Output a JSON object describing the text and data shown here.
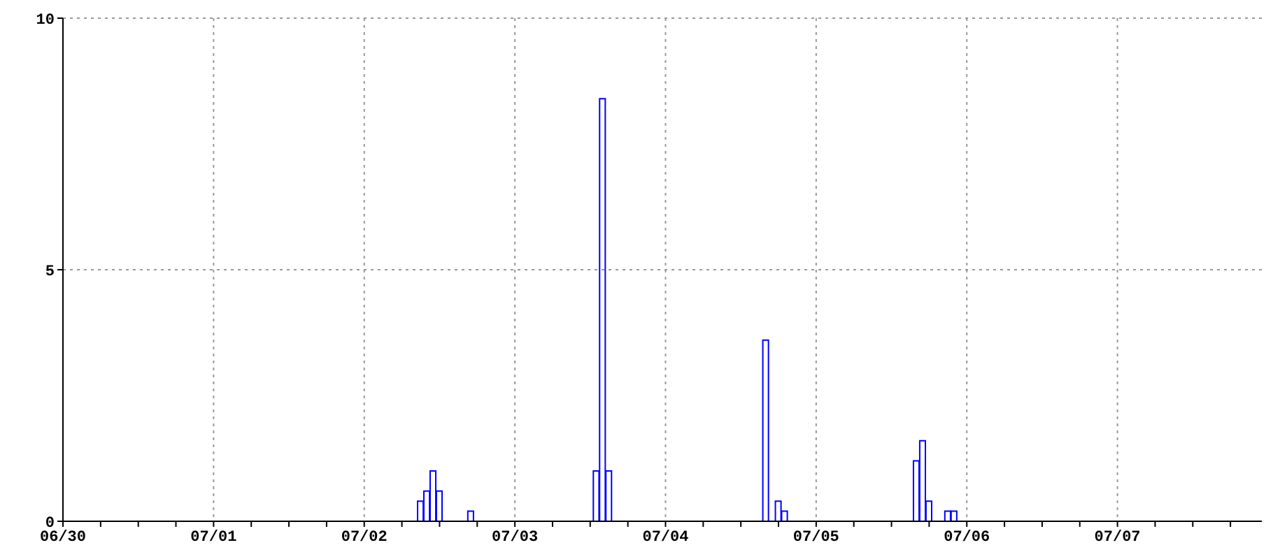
{
  "chart_data": {
    "type": "bar",
    "x": [
      "--07-02T09:00",
      "--07-02T10:00",
      "--07-02T11:00",
      "--07-02T12:00",
      "--07-02T17:00",
      "--07-03T13:00",
      "--07-03T14:00",
      "--07-03T15:00",
      "--07-04T16:00",
      "--07-04T18:00",
      "--07-04T19:00",
      "--07-05T16:00",
      "--07-05T17:00",
      "--07-05T18:00",
      "--07-05T21:00",
      "--07-05T22:00"
    ],
    "values": [
      0.4,
      0.6,
      1.0,
      0.6,
      0.2,
      1.0,
      8.4,
      1.0,
      3.6,
      0.4,
      0.2,
      1.2,
      1.6,
      0.4,
      0.2,
      0.2
    ],
    "color": "#0000ff",
    "xlim": [
      "--06-30T00:00",
      "--07-07T23:00"
    ],
    "xticks": [
      {
        "value": "--06-30",
        "label": "06/30"
      },
      {
        "value": "--06-30T06:00",
        "label": null
      },
      {
        "value": "--06-30T12:00",
        "label": null
      },
      {
        "value": "--06-30T18:00",
        "label": null
      },
      {
        "value": "--07-01",
        "label": "07/01"
      },
      {
        "value": "--07-01T06:00",
        "label": null
      },
      {
        "value": "--07-01T12:00",
        "label": null
      },
      {
        "value": "--07-01T18:00",
        "label": null
      },
      {
        "value": "--07-02",
        "label": "07/02"
      },
      {
        "value": "--07-02T06:00",
        "label": null
      },
      {
        "value": "--07-02T12:00",
        "label": null
      },
      {
        "value": "--07-02T18:00",
        "label": null
      },
      {
        "value": "--07-03",
        "label": "07/03"
      },
      {
        "value": "--07-03T06:00",
        "label": null
      },
      {
        "value": "--07-03T12:00",
        "label": null
      },
      {
        "value": "--07-03T18:00",
        "label": null
      },
      {
        "value": "--07-04",
        "label": "07/04"
      },
      {
        "value": "--07-04T06:00",
        "label": null
      },
      {
        "value": "--07-04T12:00",
        "label": null
      },
      {
        "value": "--07-04T18:00",
        "label": null
      },
      {
        "value": "--07-05",
        "label": "07/05"
      },
      {
        "value": "--07-05T06:00",
        "label": null
      },
      {
        "value": "--07-05T12:00",
        "label": null
      },
      {
        "value": "--07-05T18:00",
        "label": null
      },
      {
        "value": "--07-06",
        "label": "07/06"
      },
      {
        "value": "--07-06T06:00",
        "label": null
      },
      {
        "value": "--07-06T12:00",
        "label": null
      },
      {
        "value": "--07-06T18:00",
        "label": null
      },
      {
        "value": "--07-07",
        "label": "07/07"
      },
      {
        "value": "--07-07T06:00",
        "label": null
      },
      {
        "value": "--07-07T12:00",
        "label": null
      },
      {
        "value": "--07-07T18:00",
        "label": null
      }
    ],
    "ylim": [
      0,
      10
    ],
    "yticks": [
      0,
      5,
      10
    ],
    "grid": true
  }
}
